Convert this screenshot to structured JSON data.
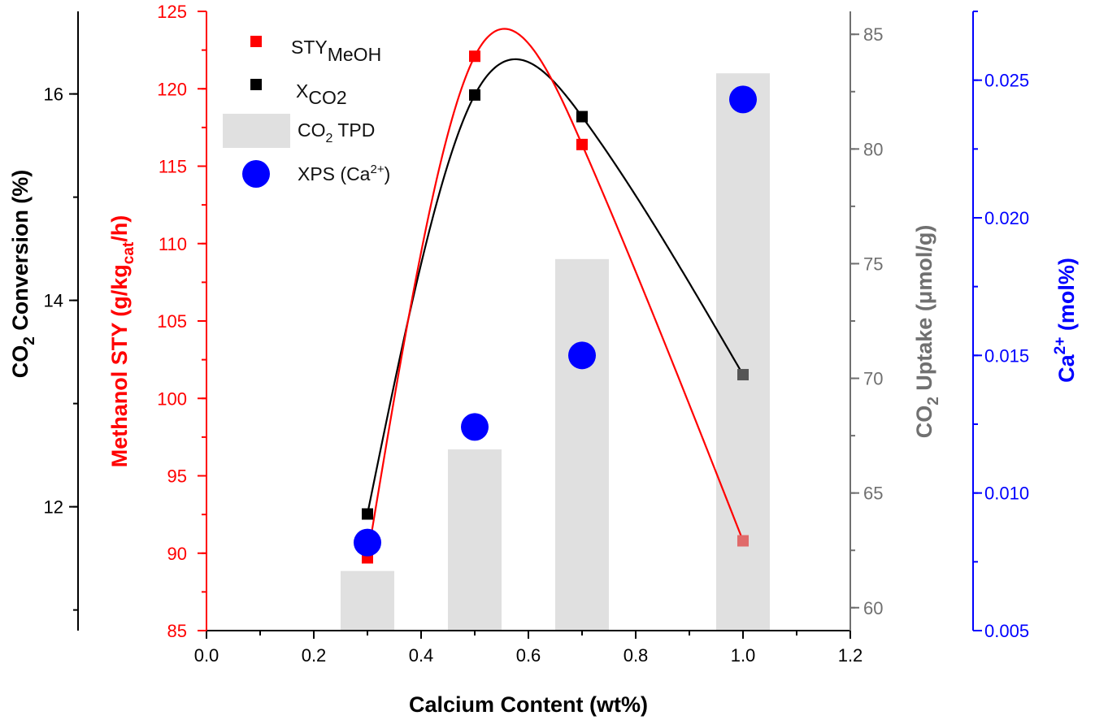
{
  "chart_data": {
    "type": "combo-bar-line-scatter",
    "x_axis": {
      "label": "Calcium Content (wt%)",
      "range": [
        0.0,
        1.2
      ],
      "ticks": [
        "0.0",
        "0.2",
        "0.4",
        "0.6",
        "0.8",
        "1.0",
        "1.2"
      ]
    },
    "y_axes": {
      "conversion": {
        "label_main": "CO",
        "label_sub": "2",
        "label_rest": " Conversion (%)",
        "range": [
          10.8,
          16.8
        ],
        "ticks": [
          "12",
          "14",
          "16"
        ],
        "color": "#000000"
      },
      "sty": {
        "label_main": "Methanol STY (g/kg",
        "label_sub": "cat",
        "label_rest": "/h)",
        "range": [
          85,
          125
        ],
        "ticks": [
          "85",
          "90",
          "95",
          "100",
          "105",
          "110",
          "115",
          "120",
          "125"
        ],
        "color": "#ff0000"
      },
      "uptake": {
        "label_main": "CO",
        "label_sub": "2",
        "label_rest": " Uptake (μmol/g)",
        "range": [
          59.0,
          86.0
        ],
        "ticks": [
          "60",
          "65",
          "70",
          "75",
          "80",
          "85"
        ],
        "color": "#707070"
      },
      "ca": {
        "label_main": "Ca",
        "label_sup": "2+",
        "label_rest": " (mol%)",
        "range": [
          0.005,
          0.0275
        ],
        "ticks": [
          "0.005",
          "0.010",
          "0.015",
          "0.020",
          "0.025"
        ],
        "color": "#0000ff"
      }
    },
    "series": [
      {
        "name": "STY_MeOH",
        "legend_main": "STY",
        "legend_sub": "MeOH",
        "axis": "sty",
        "color": "#ff0000",
        "marker": "square",
        "x": [
          0.3,
          0.5,
          0.7,
          1.0
        ],
        "values": [
          89.7,
          122.1,
          116.4,
          90.8
        ]
      },
      {
        "name": "X_CO2",
        "legend_main": "X",
        "legend_sub": "CO2",
        "axis": "conversion",
        "color": "#000000",
        "marker": "square",
        "x": [
          0.3,
          0.5,
          0.7,
          1.0
        ],
        "values": [
          11.93,
          15.99,
          15.78,
          13.28
        ]
      },
      {
        "name": "CO2 TPD",
        "legend_main": "CO",
        "legend_sub": "2",
        "legend_rest": " TPD",
        "axis": "uptake",
        "color": "#e0e0e0",
        "marker": "bar",
        "x": [
          0.3,
          0.5,
          0.7,
          1.0
        ],
        "values": [
          61.6,
          66.9,
          75.2,
          83.3
        ]
      },
      {
        "name": "XPS (Ca2+)",
        "legend_main": "XPS (Ca",
        "legend_sup": "2+",
        "legend_rest": ")",
        "axis": "ca",
        "color": "#0000ff",
        "marker": "circle",
        "x": [
          0.3,
          0.5,
          0.7,
          1.0
        ],
        "values": [
          0.0082,
          0.0124,
          0.015,
          0.0243
        ]
      }
    ],
    "legend_position": "top-left"
  }
}
